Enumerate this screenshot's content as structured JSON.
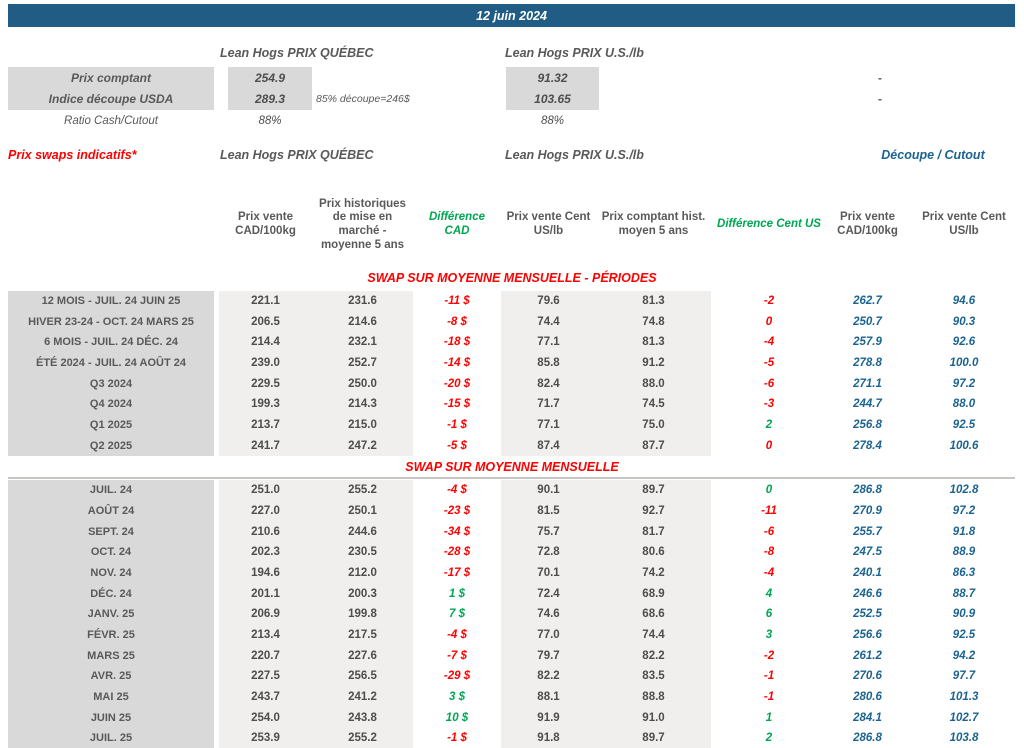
{
  "date_bar": "12 juin 2024",
  "colors": {
    "header_bar": "#205C83",
    "negative_red": "#FF0000",
    "positive_green": "#00A651",
    "cutout_blue": "#1B6390",
    "text_gray": "#595959",
    "label_bg": "#D9D9D9",
    "value_bg": "#F1EFEE",
    "section_title_red": "#FF0000"
  },
  "summary": {
    "qc_header": "Lean Hogs PRIX QUÉBEC",
    "us_header": "Lean Hogs PRIX U.S./lb",
    "rows": [
      {
        "label": "Prix comptant",
        "qc": "254.9",
        "us": "91.32",
        "dash": "-"
      },
      {
        "label": "Indice découpe USDA",
        "qc": "289.3",
        "note": "85% découpe=246$",
        "us": "103.65",
        "dash": "-"
      },
      {
        "label": "Ratio Cash/Cutout",
        "qc": "88%",
        "us": "88%"
      }
    ]
  },
  "swaps": {
    "title": "Prix swaps indicatifs*",
    "qc_header": "Lean Hogs PRIX QUÉBEC",
    "us_header": "Lean Hogs PRIX U.S./lb",
    "cutout_header": "Découpe / Cutout",
    "col_headers": [
      "Prix vente CAD/100kg",
      "Prix historiques de mise en marché - moyenne 5 ans",
      "Différence CAD",
      "Prix vente Cent US/lb",
      "Prix comptant hist. moyen 5 ans",
      "Différence Cent US",
      "Prix vente CAD/100kg",
      "Prix vente Cent US/lb"
    ],
    "row_format": [
      "label",
      "prix_vente_cad",
      "prix_hist_cad",
      "difference_cad",
      "difference_cad_color",
      "prix_vente_cent_us",
      "prix_comptant_hist",
      "difference_cent_us",
      "difference_cent_us_color",
      "cutout_cad",
      "cutout_cent_us"
    ],
    "sections": [
      {
        "title": "SWAP SUR MOYENNE MENSUELLE - PÉRIODES",
        "rows": [
          [
            "12 MOIS - JUIL. 24 JUIN 25",
            "221.1",
            "231.6",
            "-11 $",
            "red",
            "79.6",
            "81.3",
            "-2",
            "red",
            "262.7",
            "94.6"
          ],
          [
            "HIVER 23-24 -  OCT. 24 MARS 25",
            "206.5",
            "214.6",
            "-8 $",
            "red",
            "74.4",
            "74.8",
            "0",
            "red",
            "250.7",
            "90.3"
          ],
          [
            "6 MOIS -  JUIL. 24 DÉC. 24",
            "214.4",
            "232.1",
            "-18 $",
            "red",
            "77.1",
            "81.3",
            "-4",
            "red",
            "257.9",
            "92.6"
          ],
          [
            "ÉTÉ 2024 - JUIL. 24 AOÛT 24",
            "239.0",
            "252.7",
            "-14 $",
            "red",
            "85.8",
            "91.2",
            "-5",
            "red",
            "278.8",
            "100.0"
          ],
          [
            "Q3 2024",
            "229.5",
            "250.0",
            "-20 $",
            "red",
            "82.4",
            "88.0",
            "-6",
            "red",
            "271.1",
            "97.2"
          ],
          [
            "Q4 2024",
            "199.3",
            "214.3",
            "-15 $",
            "red",
            "71.7",
            "74.5",
            "-3",
            "red",
            "244.7",
            "88.0"
          ],
          [
            "Q1 2025",
            "213.7",
            "215.0",
            "-1 $",
            "red",
            "77.1",
            "75.0",
            "2",
            "green",
            "256.8",
            "92.5"
          ],
          [
            "Q2 2025",
            "241.7",
            "247.2",
            "-5 $",
            "red",
            "87.4",
            "87.7",
            "0",
            "red",
            "278.4",
            "100.6"
          ]
        ]
      },
      {
        "title": "SWAP SUR MOYENNE MENSUELLE",
        "rows": [
          [
            "JUIL. 24",
            "251.0",
            "255.2",
            "-4 $",
            "red",
            "90.1",
            "89.7",
            "0",
            "green",
            "286.8",
            "102.8"
          ],
          [
            "AOÛT 24",
            "227.0",
            "250.1",
            "-23 $",
            "red",
            "81.5",
            "92.7",
            "-11",
            "red",
            "270.9",
            "97.2"
          ],
          [
            "SEPT. 24",
            "210.6",
            "244.6",
            "-34 $",
            "red",
            "75.7",
            "81.7",
            "-6",
            "red",
            "255.7",
            "91.8"
          ],
          [
            "OCT. 24",
            "202.3",
            "230.5",
            "-28 $",
            "red",
            "72.8",
            "80.6",
            "-8",
            "red",
            "247.5",
            "88.9"
          ],
          [
            "NOV. 24",
            "194.6",
            "212.0",
            "-17 $",
            "red",
            "70.1",
            "74.2",
            "-4",
            "red",
            "240.1",
            "86.3"
          ],
          [
            "DÉC. 24",
            "201.1",
            "200.3",
            "1 $",
            "green",
            "72.4",
            "68.9",
            "4",
            "green",
            "246.6",
            "88.7"
          ],
          [
            "JANV. 25",
            "206.9",
            "199.8",
            "7 $",
            "green",
            "74.6",
            "68.6",
            "6",
            "green",
            "252.5",
            "90.9"
          ],
          [
            "FÉVR. 25",
            "213.4",
            "217.5",
            "-4 $",
            "red",
            "77.0",
            "74.4",
            "3",
            "green",
            "256.6",
            "92.5"
          ],
          [
            "MARS 25",
            "220.7",
            "227.6",
            "-7 $",
            "red",
            "79.7",
            "82.2",
            "-2",
            "red",
            "261.2",
            "94.2"
          ],
          [
            "AVR. 25",
            "227.5",
            "256.5",
            "-29 $",
            "red",
            "82.2",
            "83.5",
            "-1",
            "red",
            "270.6",
            "97.7"
          ],
          [
            "MAI 25",
            "243.7",
            "241.2",
            "3 $",
            "green",
            "88.1",
            "88.8",
            "-1",
            "red",
            "280.6",
            "101.3"
          ],
          [
            "JUIN 25",
            "254.0",
            "243.8",
            "10 $",
            "green",
            "91.9",
            "91.0",
            "1",
            "green",
            "284.1",
            "102.7"
          ],
          [
            "JUIL. 25",
            "253.9",
            "255.2",
            "-1 $",
            "red",
            "91.8",
            "89.7",
            "2",
            "green",
            "286.8",
            "103.8"
          ]
        ]
      }
    ]
  }
}
